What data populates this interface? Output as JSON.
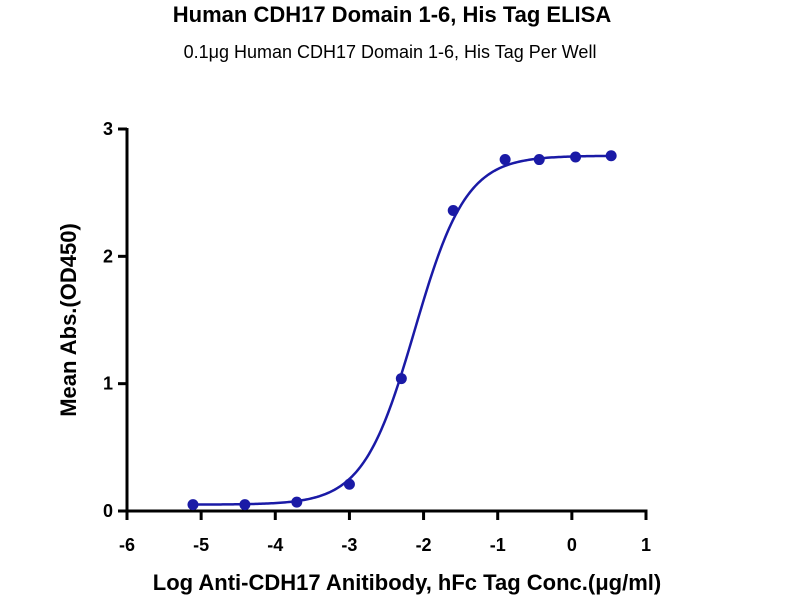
{
  "chart_data": {
    "type": "scatter",
    "title": "Human CDH17 Domain 1-6, His Tag ELISA",
    "subtitle": "0.1μg Human CDH17 Domain 1-6, His Tag Per Well",
    "xlabel": "Log Anti-CDH17 Anitibody, hFc Tag Conc.(μg/ml)",
    "ylabel": "Mean Abs.(OD450)",
    "xlim": [
      -6,
      1
    ],
    "ylim": [
      0,
      3
    ],
    "x_ticks": [
      "-6",
      "-5",
      "-4",
      "-3",
      "-2",
      "-1",
      "0",
      "1"
    ],
    "y_ticks": [
      "0",
      "1",
      "2",
      "3"
    ],
    "grid": false,
    "color": "#1a1aa6",
    "series": [
      {
        "x": [
          -5.11,
          -4.41,
          -3.71,
          -3.0,
          -2.3,
          -1.6,
          -0.9,
          -0.44,
          0.05,
          0.53
        ],
        "y": [
          0.05,
          0.05,
          0.07,
          0.21,
          1.04,
          2.36,
          2.76,
          2.76,
          2.78,
          2.79
        ],
        "fit": {
          "model": "four-parameter logistic",
          "bottom": 0.05,
          "top": 2.79,
          "logEC50": -2.12,
          "hill": 1.25
        }
      }
    ]
  }
}
